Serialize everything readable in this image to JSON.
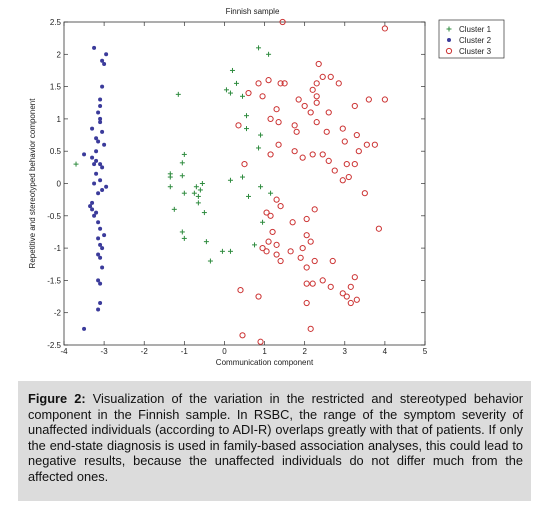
{
  "chart_data": {
    "type": "scatter",
    "title": "Finnish sample",
    "xlabel": "Communication component",
    "ylabel": "Repetitive and stereotyped behavior component",
    "xlim": [
      -4,
      5
    ],
    "ylim": [
      -2.5,
      2.5
    ],
    "xticks": [
      -4,
      -3,
      -2,
      -1,
      0,
      1,
      2,
      3,
      4,
      5
    ],
    "yticks": [
      -2.5,
      -2,
      -1.5,
      -1,
      -0.5,
      0,
      0.5,
      1,
      1.5,
      2,
      2.5
    ],
    "grid": false,
    "legend": "top-right",
    "series": [
      {
        "name": "Cluster 1",
        "marker": "plus",
        "color": "#2e8b3e",
        "points": [
          [
            -3.7,
            0.3
          ],
          [
            0.85,
            2.1
          ],
          [
            1.1,
            2.0
          ],
          [
            0.2,
            1.75
          ],
          [
            0.3,
            1.55
          ],
          [
            0.05,
            1.45
          ],
          [
            0.15,
            1.4
          ],
          [
            0.45,
            1.35
          ],
          [
            -1.15,
            1.38
          ],
          [
            0.55,
            1.05
          ],
          [
            0.55,
            0.85
          ],
          [
            0.9,
            0.75
          ],
          [
            0.85,
            0.55
          ],
          [
            -1.0,
            0.45
          ],
          [
            -1.05,
            0.32
          ],
          [
            -1.35,
            0.15
          ],
          [
            -1.35,
            0.1
          ],
          [
            -1.05,
            0.12
          ],
          [
            0.45,
            0.1
          ],
          [
            0.15,
            0.05
          ],
          [
            -1.35,
            -0.05
          ],
          [
            -0.55,
            0.0
          ],
          [
            -0.7,
            -0.05
          ],
          [
            -0.6,
            -0.1
          ],
          [
            -0.75,
            -0.15
          ],
          [
            -0.65,
            -0.2
          ],
          [
            0.9,
            -0.05
          ],
          [
            -1.0,
            -0.15
          ],
          [
            -0.65,
            -0.3
          ],
          [
            -0.5,
            -0.45
          ],
          [
            -1.25,
            -0.4
          ],
          [
            0.6,
            -0.2
          ],
          [
            1.15,
            -0.15
          ],
          [
            -1.05,
            -0.75
          ],
          [
            -1.0,
            -0.85
          ],
          [
            -0.45,
            -0.9
          ],
          [
            0.95,
            -0.6
          ],
          [
            0.75,
            -0.95
          ],
          [
            0.15,
            -1.05
          ],
          [
            -0.05,
            -1.05
          ],
          [
            -0.35,
            -1.2
          ]
        ]
      },
      {
        "name": "Cluster 2",
        "marker": "dot",
        "color": "#3b3b9b",
        "points": [
          [
            -3.25,
            2.1
          ],
          [
            -2.95,
            2.0
          ],
          [
            -3.05,
            1.9
          ],
          [
            -3.0,
            1.85
          ],
          [
            -3.05,
            1.5
          ],
          [
            -3.1,
            1.3
          ],
          [
            -3.1,
            1.2
          ],
          [
            -3.15,
            1.1
          ],
          [
            -3.1,
            1.0
          ],
          [
            -3.1,
            0.95
          ],
          [
            -3.3,
            0.85
          ],
          [
            -3.05,
            0.8
          ],
          [
            -3.2,
            0.7
          ],
          [
            -3.15,
            0.65
          ],
          [
            -3.0,
            0.6
          ],
          [
            -3.2,
            0.5
          ],
          [
            -3.5,
            0.45
          ],
          [
            -3.3,
            0.4
          ],
          [
            -3.2,
            0.35
          ],
          [
            -3.1,
            0.3
          ],
          [
            -3.25,
            0.3
          ],
          [
            -3.05,
            0.25
          ],
          [
            -3.2,
            0.15
          ],
          [
            -3.1,
            0.05
          ],
          [
            -3.25,
            0.0
          ],
          [
            -2.95,
            -0.05
          ],
          [
            -3.05,
            -0.1
          ],
          [
            -3.15,
            -0.15
          ],
          [
            -3.3,
            -0.3
          ],
          [
            -3.35,
            -0.35
          ],
          [
            -3.3,
            -0.4
          ],
          [
            -3.2,
            -0.45
          ],
          [
            -3.25,
            -0.5
          ],
          [
            -3.15,
            -0.6
          ],
          [
            -3.1,
            -0.7
          ],
          [
            -3.0,
            -0.8
          ],
          [
            -3.15,
            -0.85
          ],
          [
            -3.1,
            -0.95
          ],
          [
            -3.05,
            -1.0
          ],
          [
            -3.15,
            -1.1
          ],
          [
            -3.1,
            -1.15
          ],
          [
            -3.05,
            -1.3
          ],
          [
            -3.15,
            -1.5
          ],
          [
            -3.1,
            -1.55
          ],
          [
            -3.1,
            -1.85
          ],
          [
            -3.15,
            -1.95
          ],
          [
            -3.5,
            -2.25
          ]
        ]
      },
      {
        "name": "Cluster 3",
        "marker": "circle",
        "color": "#cc3333",
        "points": [
          [
            1.45,
            2.5
          ],
          [
            4.0,
            2.4
          ],
          [
            2.35,
            1.85
          ],
          [
            2.45,
            1.65
          ],
          [
            2.65,
            1.65
          ],
          [
            2.3,
            1.55
          ],
          [
            1.5,
            1.55
          ],
          [
            1.4,
            1.55
          ],
          [
            1.1,
            1.6
          ],
          [
            0.85,
            1.55
          ],
          [
            2.85,
            1.55
          ],
          [
            0.6,
            1.4
          ],
          [
            0.95,
            1.35
          ],
          [
            2.2,
            1.45
          ],
          [
            2.3,
            1.35
          ],
          [
            2.3,
            1.25
          ],
          [
            1.85,
            1.3
          ],
          [
            2.0,
            1.2
          ],
          [
            2.6,
            1.1
          ],
          [
            1.3,
            1.15
          ],
          [
            2.15,
            1.1
          ],
          [
            3.25,
            1.2
          ],
          [
            3.6,
            1.3
          ],
          [
            4.0,
            1.3
          ],
          [
            1.15,
            1.0
          ],
          [
            1.35,
            0.95
          ],
          [
            1.75,
            0.9
          ],
          [
            1.8,
            0.8
          ],
          [
            2.3,
            0.95
          ],
          [
            2.55,
            0.8
          ],
          [
            2.95,
            0.85
          ],
          [
            3.3,
            0.75
          ],
          [
            3.0,
            0.65
          ],
          [
            1.35,
            0.6
          ],
          [
            1.75,
            0.5
          ],
          [
            2.2,
            0.45
          ],
          [
            2.45,
            0.45
          ],
          [
            3.35,
            0.5
          ],
          [
            3.75,
            0.6
          ],
          [
            3.55,
            0.6
          ],
          [
            1.15,
            0.45
          ],
          [
            1.95,
            0.4
          ],
          [
            2.6,
            0.35
          ],
          [
            3.05,
            0.3
          ],
          [
            3.25,
            0.3
          ],
          [
            2.75,
            0.2
          ],
          [
            2.95,
            0.05
          ],
          [
            3.1,
            0.1
          ],
          [
            0.35,
            0.9
          ],
          [
            0.5,
            0.3
          ],
          [
            1.3,
            -0.25
          ],
          [
            1.4,
            -0.35
          ],
          [
            1.05,
            -0.45
          ],
          [
            1.15,
            -0.5
          ],
          [
            2.25,
            -0.4
          ],
          [
            2.05,
            -0.55
          ],
          [
            1.7,
            -0.6
          ],
          [
            3.5,
            -0.15
          ],
          [
            3.85,
            -0.7
          ],
          [
            1.2,
            -0.75
          ],
          [
            1.1,
            -0.9
          ],
          [
            1.3,
            -0.95
          ],
          [
            2.05,
            -0.8
          ],
          [
            2.15,
            -0.9
          ],
          [
            1.95,
            -1.0
          ],
          [
            0.95,
            -1.0
          ],
          [
            1.05,
            -1.05
          ],
          [
            1.3,
            -1.1
          ],
          [
            1.4,
            -1.2
          ],
          [
            1.65,
            -1.05
          ],
          [
            1.9,
            -1.15
          ],
          [
            2.25,
            -1.2
          ],
          [
            2.05,
            -1.3
          ],
          [
            2.05,
            -1.55
          ],
          [
            2.2,
            -1.55
          ],
          [
            2.7,
            -1.2
          ],
          [
            2.45,
            -1.5
          ],
          [
            2.65,
            -1.6
          ],
          [
            3.25,
            -1.45
          ],
          [
            3.15,
            -1.6
          ],
          [
            2.95,
            -1.7
          ],
          [
            3.05,
            -1.75
          ],
          [
            3.3,
            -1.8
          ],
          [
            0.4,
            -1.65
          ],
          [
            0.85,
            -1.75
          ],
          [
            2.05,
            -1.85
          ],
          [
            3.15,
            -1.85
          ],
          [
            2.15,
            -2.25
          ],
          [
            0.45,
            -2.35
          ],
          [
            0.9,
            -2.45
          ]
        ]
      }
    ]
  },
  "caption": {
    "label": "Figure 2:",
    "text": "Visualization of the variation in the restricted and stereotyped behavior component in the Finnish sample. In RSBC, the range of the symptom severity of unaffected individuals (according to ADI-R) overlaps greatly with that of patients. If only the end-state diagnosis is used in family-based association analyses, this could lead to negative results, because the unaffected individuals do not differ much from the affected ones."
  }
}
